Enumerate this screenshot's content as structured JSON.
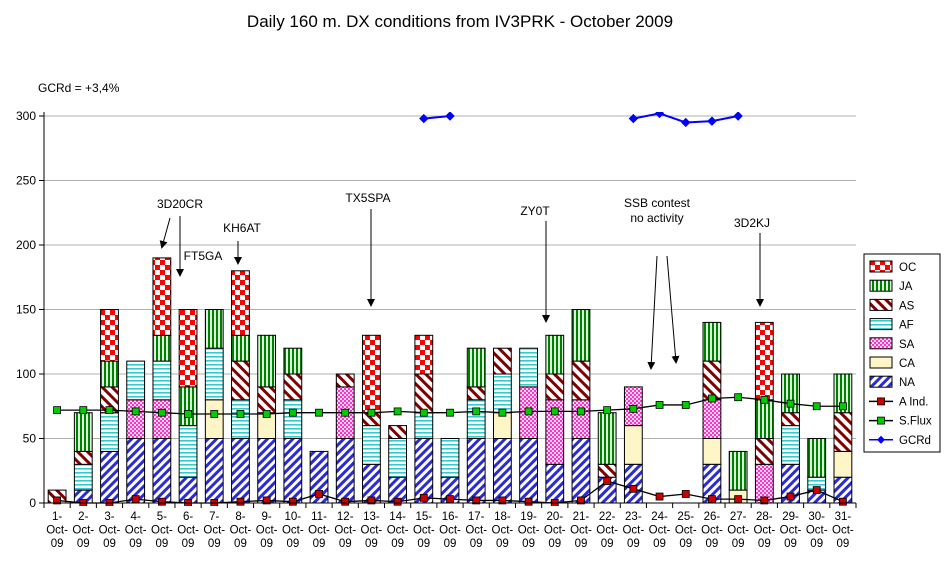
{
  "chart_data": {
    "type": "bar",
    "title": "Daily 160 m. DX conditions from IV3PRK      -   October 2009",
    "subtitle": "GCRd = +3,4%",
    "xlabel": "",
    "ylabel": "",
    "ylim": [
      0,
      300
    ],
    "yticks": [
      0,
      50,
      100,
      150,
      200,
      250,
      300
    ],
    "grid": true,
    "legend_position": "right",
    "categories": [
      "1-Oct-09",
      "2-Oct-09",
      "3-Oct-09",
      "4-Oct-09",
      "5-Oct-09",
      "6-Oct-09",
      "7-Oct-09",
      "8-Oct-09",
      "9-Oct-09",
      "10-Oct-09",
      "11-Oct-09",
      "12-Oct-09",
      "13-Oct-09",
      "14-Oct-09",
      "15-Oct-09",
      "16-Oct-09",
      "17-Oct-09",
      "18-Oct-09",
      "19-Oct-09",
      "20-Oct-09",
      "21-Oct-09",
      "22-Oct-09",
      "23-Oct-09",
      "24-Oct-09",
      "25-Oct-09",
      "26-Oct-09",
      "27-Oct-09",
      "28-Oct-09",
      "29-Oct-09",
      "30-Oct-09",
      "31-Oct-09"
    ],
    "category_lines": [
      [
        "1-",
        "Oct-",
        "09"
      ],
      [
        "2-",
        "Oct-",
        "09"
      ],
      [
        "3-",
        "Oct-",
        "09"
      ],
      [
        "4-",
        "Oct-",
        "09"
      ],
      [
        "5-",
        "Oct-",
        "09"
      ],
      [
        "6-",
        "Oct-",
        "09"
      ],
      [
        "7-",
        "Oct-",
        "09"
      ],
      [
        "8-",
        "Oct-",
        "09"
      ],
      [
        "9-",
        "Oct-",
        "09"
      ],
      [
        "10-",
        "Oct-",
        "09"
      ],
      [
        "11-",
        "Oct-",
        "09"
      ],
      [
        "12-",
        "Oct-",
        "09"
      ],
      [
        "13-",
        "Oct-",
        "09"
      ],
      [
        "14-",
        "Oct-",
        "09"
      ],
      [
        "15-",
        "Oct-",
        "09"
      ],
      [
        "16-",
        "Oct-",
        "09"
      ],
      [
        "17-",
        "Oct-",
        "09"
      ],
      [
        "18-",
        "Oct-",
        "09"
      ],
      [
        "19-",
        "Oct-",
        "09"
      ],
      [
        "20-",
        "Oct-",
        "09"
      ],
      [
        "21-",
        "Oct-",
        "09"
      ],
      [
        "22-",
        "Oct-",
        "09"
      ],
      [
        "23-",
        "Oct-",
        "09"
      ],
      [
        "24-",
        "Oct-",
        "09"
      ],
      [
        "25-",
        "Oct-",
        "09"
      ],
      [
        "26-",
        "Oct-",
        "09"
      ],
      [
        "27-",
        "Oct-",
        "09"
      ],
      [
        "28-",
        "Oct-",
        "09"
      ],
      [
        "29-",
        "Oct-",
        "09"
      ],
      [
        "30-",
        "Oct-",
        "09"
      ],
      [
        "31-",
        "Oct-",
        "09"
      ]
    ],
    "stacked_series": [
      {
        "name": "NA",
        "color": "#2b2bd6",
        "pattern": "diag-blue",
        "values": [
          0,
          10,
          40,
          50,
          50,
          20,
          50,
          50,
          50,
          50,
          40,
          50,
          30,
          20,
          50,
          20,
          50,
          50,
          50,
          30,
          50,
          20,
          30,
          0,
          0,
          30,
          0,
          0,
          30,
          10,
          20
        ]
      },
      {
        "name": "CA",
        "color": "#fff6c8",
        "pattern": "cream",
        "values": [
          0,
          0,
          0,
          0,
          0,
          0,
          30,
          0,
          20,
          0,
          0,
          0,
          0,
          0,
          0,
          0,
          0,
          20,
          0,
          0,
          0,
          0,
          30,
          0,
          0,
          20,
          10,
          0,
          0,
          0,
          20
        ]
      },
      {
        "name": "SA",
        "color": "#ff33cc",
        "pattern": "dots-magenta",
        "values": [
          0,
          0,
          0,
          30,
          30,
          0,
          0,
          0,
          0,
          0,
          0,
          40,
          0,
          0,
          0,
          0,
          0,
          0,
          40,
          50,
          30,
          0,
          30,
          0,
          0,
          30,
          0,
          30,
          0,
          0,
          0
        ]
      },
      {
        "name": "AF",
        "color": "#33cccc",
        "pattern": "hlines-cyan",
        "values": [
          0,
          20,
          30,
          30,
          30,
          40,
          40,
          30,
          0,
          30,
          0,
          0,
          30,
          30,
          20,
          30,
          30,
          30,
          30,
          0,
          0,
          0,
          0,
          0,
          0,
          0,
          0,
          0,
          30,
          10,
          0
        ]
      },
      {
        "name": "AS",
        "color": "#800000",
        "pattern": "diag-maroon",
        "values": [
          10,
          10,
          20,
          0,
          0,
          0,
          0,
          30,
          20,
          20,
          0,
          10,
          10,
          10,
          30,
          0,
          10,
          20,
          0,
          20,
          30,
          10,
          0,
          0,
          0,
          30,
          0,
          20,
          10,
          0,
          30
        ]
      },
      {
        "name": "JA",
        "color": "#008000",
        "pattern": "vlines-green",
        "values": [
          0,
          30,
          20,
          0,
          20,
          30,
          30,
          20,
          40,
          20,
          0,
          0,
          0,
          0,
          0,
          0,
          30,
          0,
          0,
          30,
          40,
          40,
          0,
          0,
          0,
          30,
          30,
          30,
          30,
          30,
          30
        ]
      },
      {
        "name": "OC",
        "color": "#ff0000",
        "pattern": "checker-red",
        "values": [
          0,
          0,
          40,
          0,
          60,
          60,
          0,
          50,
          0,
          0,
          0,
          0,
          60,
          0,
          30,
          0,
          0,
          0,
          0,
          0,
          0,
          0,
          0,
          0,
          0,
          0,
          0,
          60,
          0,
          0,
          0
        ]
      }
    ],
    "line_series": [
      {
        "name": "A Ind.",
        "color": "#cc0000",
        "marker": "square",
        "values": [
          2,
          0,
          0,
          3,
          1,
          0,
          0,
          1,
          2,
          1,
          7,
          1,
          2,
          1,
          4,
          3,
          2,
          2,
          1,
          0,
          2,
          17,
          11,
          5,
          7,
          3,
          3,
          2,
          5,
          10,
          1
        ]
      },
      {
        "name": "S.Flux",
        "color": "#00cc00",
        "marker": "square",
        "values": [
          72,
          72,
          72,
          71,
          70,
          69,
          69,
          69,
          69,
          70,
          70,
          70,
          70,
          71,
          70,
          70,
          71,
          70,
          71,
          71,
          71,
          72,
          73,
          76,
          76,
          81,
          82,
          80,
          77,
          75,
          75
        ]
      },
      {
        "name": "GCRd",
        "color": "#0000ff",
        "marker": "diamond",
        "clip_to_plot": true,
        "values": [
          null,
          null,
          null,
          null,
          null,
          null,
          null,
          null,
          null,
          null,
          null,
          null,
          null,
          null,
          298,
          300,
          null,
          null,
          null,
          null,
          null,
          null,
          298,
          302,
          295,
          296,
          300,
          null,
          null,
          null,
          null
        ]
      }
    ],
    "legend_order": [
      "OC",
      "JA",
      "AS",
      "AF",
      "SA",
      "CA",
      "NA",
      "A Ind.",
      "S.Flux",
      "GCRd"
    ],
    "annotations": [
      {
        "lines": [
          "3D20CR"
        ],
        "day_index": 4
      },
      {
        "lines": [
          "FT5GA"
        ],
        "day_index": 5
      },
      {
        "lines": [
          "KH6AT"
        ],
        "day_index": 7
      },
      {
        "lines": [
          "TX5SPA"
        ],
        "day_index": 12
      },
      {
        "lines": [
          "ZY0T"
        ],
        "day_index": 19
      },
      {
        "lines": [
          "SSB contest",
          "no activity"
        ],
        "day_index": 23
      },
      {
        "lines": [
          "3D2KJ"
        ],
        "day_index": 27
      }
    ]
  }
}
